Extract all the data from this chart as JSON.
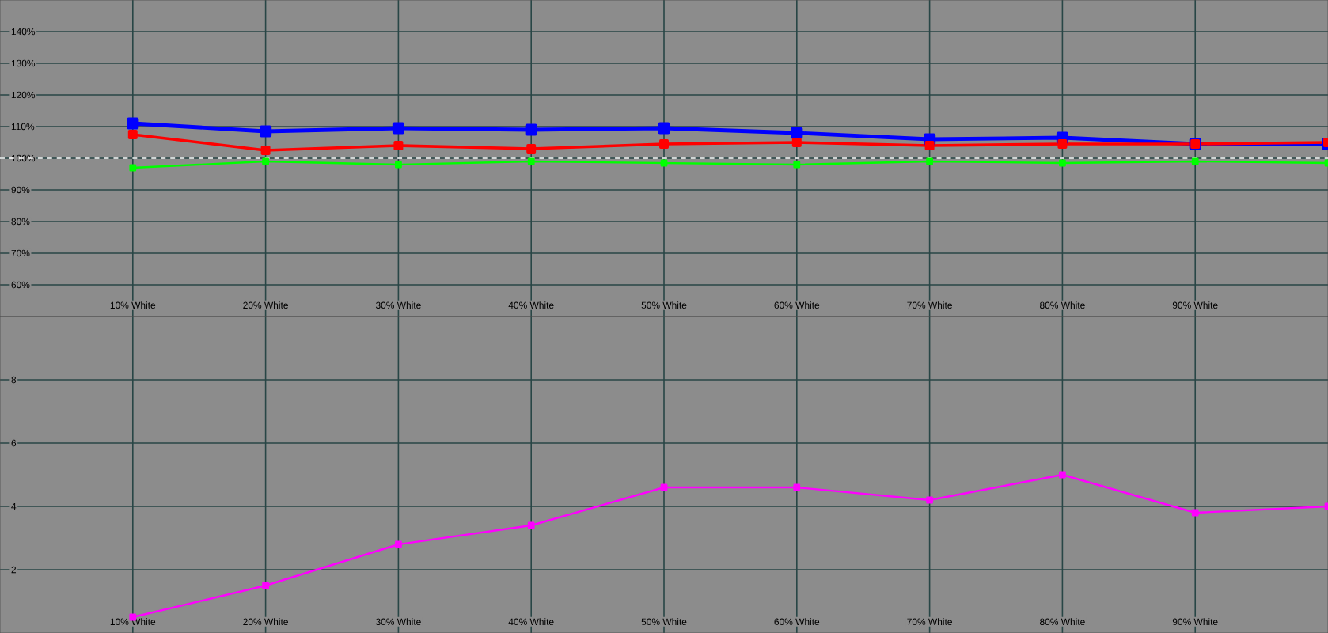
{
  "chart_data": [
    {
      "type": "line",
      "x": [
        10,
        20,
        30,
        40,
        50,
        60,
        70,
        80,
        90,
        100
      ],
      "xlim": [
        0,
        100
      ],
      "xticks": [
        {
          "value": 10,
          "label": "10% White"
        },
        {
          "value": 20,
          "label": "20% White"
        },
        {
          "value": 30,
          "label": "30% White"
        },
        {
          "value": 40,
          "label": "40% White"
        },
        {
          "value": 50,
          "label": "50% White"
        },
        {
          "value": 60,
          "label": "60% White"
        },
        {
          "value": 70,
          "label": "70% White"
        },
        {
          "value": 80,
          "label": "80% White"
        },
        {
          "value": 90,
          "label": "90% White"
        }
      ],
      "ylim": [
        50,
        150
      ],
      "yticks": [
        {
          "value": 60,
          "label": "60%"
        },
        {
          "value": 70,
          "label": "70%"
        },
        {
          "value": 80,
          "label": "80%"
        },
        {
          "value": 90,
          "label": "90%"
        },
        {
          "value": 100,
          "label": "100%"
        },
        {
          "value": 110,
          "label": "110%"
        },
        {
          "value": 120,
          "label": "120%"
        },
        {
          "value": 130,
          "label": "130%"
        },
        {
          "value": 140,
          "label": "140%"
        }
      ],
      "series": [
        {
          "color": "#0000ff",
          "values": [
            111,
            108.5,
            109.5,
            109,
            109.5,
            108,
            106,
            106.5,
            104.5,
            104.5
          ]
        },
        {
          "color": "#ff0000",
          "values": [
            107.5,
            102.5,
            104,
            103,
            104.5,
            105,
            104,
            104.5,
            104.5,
            105
          ]
        },
        {
          "color": "#00ff00",
          "values": [
            97,
            99,
            98,
            99,
            98.5,
            98,
            99,
            98.5,
            99,
            98.5
          ]
        }
      ],
      "ref_lines": [
        {
          "axis": "y",
          "value": 100,
          "color": "#ffffff",
          "line_style": "dashed"
        }
      ],
      "grid": true,
      "marker": "square",
      "line_style": "solid"
    },
    {
      "type": "line",
      "x": [
        10,
        20,
        30,
        40,
        50,
        60,
        70,
        80,
        90,
        100
      ],
      "xlim": [
        0,
        100
      ],
      "xticks": [
        {
          "value": 10,
          "label": "10% White"
        },
        {
          "value": 20,
          "label": "20% White"
        },
        {
          "value": 30,
          "label": "30% White"
        },
        {
          "value": 40,
          "label": "40% White"
        },
        {
          "value": 50,
          "label": "50% White"
        },
        {
          "value": 60,
          "label": "60% White"
        },
        {
          "value": 70,
          "label": "70% White"
        },
        {
          "value": 80,
          "label": "80% White"
        },
        {
          "value": 90,
          "label": "90% White"
        }
      ],
      "ylim": [
        0,
        10
      ],
      "yticks": [
        2,
        4,
        6,
        8
      ],
      "series": [
        {
          "color": "#ff00ff",
          "values": [
            0.5,
            1.5,
            2.8,
            3.4,
            4.6,
            4.6,
            4.2,
            5.0,
            3.8,
            4.0
          ]
        }
      ],
      "grid": true,
      "marker": "square",
      "line_style": "solid"
    }
  ]
}
